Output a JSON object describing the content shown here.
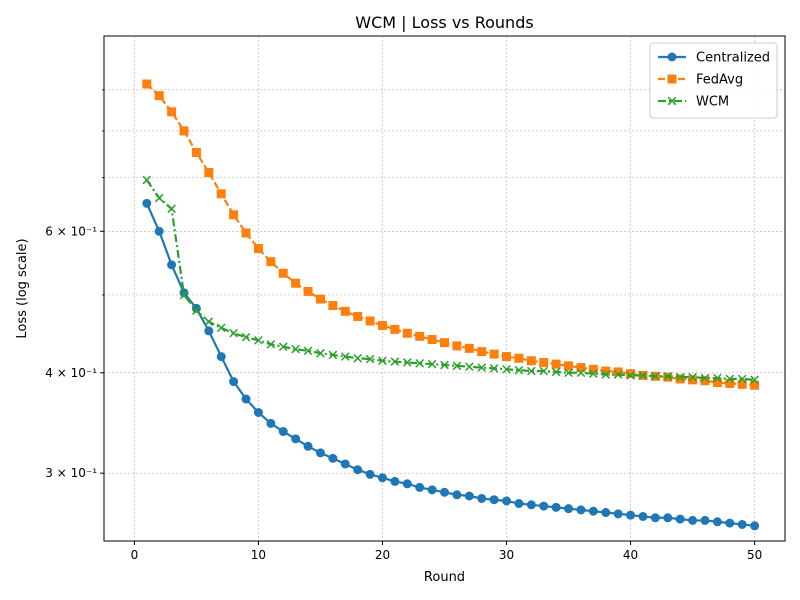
{
  "chart_data": {
    "type": "line",
    "title": "WCM | Loss vs Rounds",
    "xlabel": "Round",
    "ylabel": "Loss (log scale)",
    "yscale": "log",
    "xlim": [
      -2.45,
      52.45
    ],
    "ylim": [
      0.247,
      1.05
    ],
    "grid": true,
    "legend_position": "top-right",
    "x_ticks": [
      0,
      10,
      20,
      30,
      40,
      50
    ],
    "x_tick_labels": [
      "0",
      "10",
      "20",
      "30",
      "40",
      "50"
    ],
    "y_major_ticks": [
      0.3,
      0.4,
      0.6
    ],
    "y_major_tick_labels": [
      "3 × 10⁻¹",
      "4 × 10⁻¹",
      "6 × 10⁻¹"
    ],
    "y_minor_ticks": [
      0.5,
      0.7,
      0.8,
      0.9
    ],
    "x": [
      1,
      2,
      3,
      4,
      5,
      6,
      7,
      8,
      9,
      10,
      11,
      12,
      13,
      14,
      15,
      16,
      17,
      18,
      19,
      20,
      21,
      22,
      23,
      24,
      25,
      26,
      27,
      28,
      29,
      30,
      31,
      32,
      33,
      34,
      35,
      36,
      37,
      38,
      39,
      40,
      41,
      42,
      43,
      44,
      45,
      46,
      47,
      48,
      49,
      50
    ],
    "series": [
      {
        "name": "Centralized",
        "color": "#1f77b4",
        "marker": "circle",
        "line_style": "solid",
        "values": [
          0.65,
          0.6,
          0.545,
          0.503,
          0.481,
          0.451,
          0.419,
          0.39,
          0.371,
          0.357,
          0.346,
          0.338,
          0.331,
          0.324,
          0.318,
          0.313,
          0.308,
          0.303,
          0.299,
          0.296,
          0.293,
          0.291,
          0.288,
          0.286,
          0.284,
          0.282,
          0.281,
          0.279,
          0.278,
          0.277,
          0.275,
          0.274,
          0.273,
          0.272,
          0.271,
          0.27,
          0.269,
          0.268,
          0.267,
          0.266,
          0.265,
          0.264,
          0.264,
          0.263,
          0.262,
          0.262,
          0.261,
          0.26,
          0.259,
          0.258
        ]
      },
      {
        "name": "FedAvg",
        "color": "#ff7f0e",
        "marker": "square",
        "line_style": "dashed",
        "values": [
          0.915,
          0.885,
          0.845,
          0.8,
          0.752,
          0.71,
          0.668,
          0.629,
          0.597,
          0.571,
          0.55,
          0.532,
          0.517,
          0.505,
          0.494,
          0.485,
          0.477,
          0.47,
          0.464,
          0.458,
          0.453,
          0.448,
          0.444,
          0.44,
          0.436,
          0.432,
          0.429,
          0.425,
          0.422,
          0.419,
          0.417,
          0.414,
          0.412,
          0.41,
          0.408,
          0.406,
          0.404,
          0.402,
          0.401,
          0.399,
          0.397,
          0.396,
          0.395,
          0.393,
          0.392,
          0.391,
          0.389,
          0.388,
          0.387,
          0.386
        ]
      },
      {
        "name": "WCM",
        "color": "#2ca02c",
        "marker": "x",
        "line_style": "dashdot",
        "values": [
          0.695,
          0.66,
          0.64,
          0.5,
          0.478,
          0.463,
          0.455,
          0.448,
          0.443,
          0.439,
          0.434,
          0.431,
          0.428,
          0.426,
          0.423,
          0.421,
          0.419,
          0.417,
          0.416,
          0.414,
          0.413,
          0.412,
          0.411,
          0.41,
          0.409,
          0.408,
          0.407,
          0.406,
          0.405,
          0.404,
          0.403,
          0.402,
          0.402,
          0.401,
          0.4,
          0.4,
          0.399,
          0.398,
          0.398,
          0.397,
          0.397,
          0.396,
          0.396,
          0.395,
          0.395,
          0.394,
          0.394,
          0.393,
          0.393,
          0.392
        ]
      }
    ]
  }
}
